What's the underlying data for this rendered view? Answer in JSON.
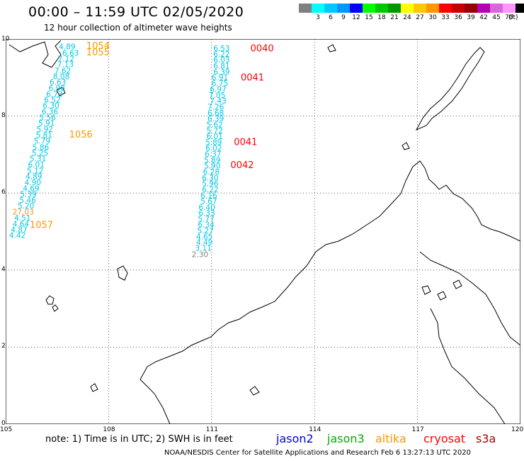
{
  "header": {
    "title": "00:00 – 11:59 UTC 02/05/2020",
    "subtitle": "12 hour collection of altimeter wave heights"
  },
  "legend": {
    "unit": "(ft)",
    "entries": [
      {
        "label": "",
        "color": "#808080"
      },
      {
        "label": "3",
        "color": "#00ffff"
      },
      {
        "label": "6",
        "color": "#00c8ff"
      },
      {
        "label": "9",
        "color": "#0096ff"
      },
      {
        "label": "12",
        "color": "#0000ff"
      },
      {
        "label": "15",
        "color": "#00ff00"
      },
      {
        "label": "18",
        "color": "#00c800"
      },
      {
        "label": "21",
        "color": "#009600"
      },
      {
        "label": "24",
        "color": "#ffff00"
      },
      {
        "label": "27",
        "color": "#ffc800"
      },
      {
        "label": "30",
        "color": "#ff9600"
      },
      {
        "label": "33",
        "color": "#ff0000"
      },
      {
        "label": "36",
        "color": "#c80000"
      },
      {
        "label": "39",
        "color": "#960000"
      },
      {
        "label": "42",
        "color": "#b400b4"
      },
      {
        "label": "45",
        "color": "#dc64dc"
      },
      {
        "label": "70",
        "color": "#ff96ff"
      },
      {
        "label": "",
        "color": "#000000"
      }
    ]
  },
  "axes": {
    "lon_labels": [
      "105",
      "108",
      "111",
      "114",
      "117",
      "120"
    ],
    "lat_labels": [
      "10",
      "8",
      "6",
      "4",
      "2",
      "0"
    ]
  },
  "tracks": [
    {
      "name": "west-track",
      "points": [
        {
          "lon": 106.55,
          "lat": 9.73,
          "v": "4.89"
        },
        {
          "lon": 106.65,
          "lat": 9.57,
          "v": "6.63"
        },
        {
          "lon": 106.52,
          "lat": 9.42,
          "v": "7.12"
        },
        {
          "lon": 106.5,
          "lat": 9.27,
          "v": "7.13"
        },
        {
          "lon": 106.42,
          "lat": 9.11,
          "v": "7.62"
        },
        {
          "lon": 106.38,
          "lat": 8.96,
          "v": "8.08"
        },
        {
          "lon": 106.28,
          "lat": 8.81,
          "v": "6.63"
        },
        {
          "lon": 106.25,
          "lat": 8.66,
          "v": "6.98"
        },
        {
          "lon": 106.18,
          "lat": 8.5,
          "v": "6.73"
        },
        {
          "lon": 106.12,
          "lat": 8.35,
          "v": "6.52"
        },
        {
          "lon": 106.08,
          "lat": 8.2,
          "v": "6.30"
        },
        {
          "lon": 106.05,
          "lat": 8.05,
          "v": "6.36"
        },
        {
          "lon": 105.98,
          "lat": 7.89,
          "v": "5.56"
        },
        {
          "lon": 105.95,
          "lat": 7.74,
          "v": "5.91"
        },
        {
          "lon": 105.9,
          "lat": 7.59,
          "v": "5.92"
        },
        {
          "lon": 105.88,
          "lat": 7.43,
          "v": "5.81"
        },
        {
          "lon": 105.82,
          "lat": 7.28,
          "v": "5.79"
        },
        {
          "lon": 105.78,
          "lat": 7.12,
          "v": "5.86"
        },
        {
          "lon": 105.76,
          "lat": 6.97,
          "v": "5.25"
        },
        {
          "lon": 105.7,
          "lat": 6.82,
          "v": "5.31"
        },
        {
          "lon": 105.65,
          "lat": 6.67,
          "v": "6.01"
        },
        {
          "lon": 105.62,
          "lat": 6.51,
          "v": "5.12"
        },
        {
          "lon": 105.58,
          "lat": 6.36,
          "v": "4.89"
        },
        {
          "lon": 105.55,
          "lat": 6.21,
          "v": "4.90"
        },
        {
          "lon": 105.5,
          "lat": 6.05,
          "v": "4.69"
        },
        {
          "lon": 105.42,
          "lat": 5.9,
          "v": "5.39"
        },
        {
          "lon": 105.4,
          "lat": 5.75,
          "v": "5.46"
        },
        {
          "lon": 105.35,
          "lat": 5.6,
          "v": "5.20"
        },
        {
          "lon": 105.2,
          "lat": 5.44,
          "v": "27.03",
          "color": "#ff9600"
        },
        {
          "lon": 105.25,
          "lat": 5.29,
          "v": "4.51"
        },
        {
          "lon": 105.2,
          "lat": 5.13,
          "v": "4.64"
        },
        {
          "lon": 105.15,
          "lat": 4.98,
          "v": "4.87"
        },
        {
          "lon": 105.1,
          "lat": 4.83,
          "v": "4.42"
        }
      ]
    },
    {
      "name": "central-track",
      "points": [
        {
          "lon": 111.05,
          "lat": 9.69,
          "v": "6.53"
        },
        {
          "lon": 111.05,
          "lat": 9.54,
          "v": "6.22"
        },
        {
          "lon": 111.05,
          "lat": 9.39,
          "v": "6.03"
        },
        {
          "lon": 111.05,
          "lat": 9.24,
          "v": "6.81"
        },
        {
          "lon": 111.05,
          "lat": 9.08,
          "v": "6.39"
        },
        {
          "lon": 111.0,
          "lat": 8.93,
          "v": "6.91"
        },
        {
          "lon": 111.0,
          "lat": 8.78,
          "v": "6.75"
        },
        {
          "lon": 110.95,
          "lat": 8.63,
          "v": "6.97"
        },
        {
          "lon": 110.92,
          "lat": 8.47,
          "v": "7.05"
        },
        {
          "lon": 110.95,
          "lat": 8.32,
          "v": "7.43"
        },
        {
          "lon": 110.88,
          "lat": 8.17,
          "v": "7.26"
        },
        {
          "lon": 110.88,
          "lat": 8.01,
          "v": "6.68"
        },
        {
          "lon": 110.88,
          "lat": 7.86,
          "v": "6.39"
        },
        {
          "lon": 110.85,
          "lat": 7.71,
          "v": "5.62"
        },
        {
          "lon": 110.85,
          "lat": 7.55,
          "v": "5.72"
        },
        {
          "lon": 110.85,
          "lat": 7.4,
          "v": "6.01"
        },
        {
          "lon": 110.82,
          "lat": 7.25,
          "v": "5.89"
        },
        {
          "lon": 110.82,
          "lat": 7.1,
          "v": "6.02"
        },
        {
          "lon": 110.8,
          "lat": 6.94,
          "v": "6.37"
        },
        {
          "lon": 110.78,
          "lat": 6.79,
          "v": "5.89"
        },
        {
          "lon": 110.78,
          "lat": 6.64,
          "v": "5.90"
        },
        {
          "lon": 110.75,
          "lat": 6.48,
          "v": "6.28"
        },
        {
          "lon": 110.72,
          "lat": 6.33,
          "v": "6.30"
        },
        {
          "lon": 110.72,
          "lat": 6.18,
          "v": "5.96"
        },
        {
          "lon": 110.72,
          "lat": 6.02,
          "v": "6.22"
        },
        {
          "lon": 110.68,
          "lat": 5.87,
          "v": "6.16"
        },
        {
          "lon": 110.68,
          "lat": 5.72,
          "v": "5.67"
        },
        {
          "lon": 110.62,
          "lat": 5.56,
          "v": "6.40"
        },
        {
          "lon": 110.62,
          "lat": 5.41,
          "v": "6.33"
        },
        {
          "lon": 110.6,
          "lat": 5.26,
          "v": "5.77"
        },
        {
          "lon": 110.6,
          "lat": 5.11,
          "v": "6.34"
        },
        {
          "lon": 110.58,
          "lat": 4.95,
          "v": "5.27"
        },
        {
          "lon": 110.55,
          "lat": 4.8,
          "v": "4.65"
        },
        {
          "lon": 110.55,
          "lat": 4.65,
          "v": "4.49"
        },
        {
          "lon": 110.52,
          "lat": 4.5,
          "v": "3.11"
        },
        {
          "lon": 110.42,
          "lat": 4.34,
          "v": "2.30",
          "color": "#808080"
        }
      ]
    }
  ],
  "time_labels": [
    {
      "lon": 107.35,
      "lat": 9.74,
      "text": "1054",
      "color": "#ff9600"
    },
    {
      "lon": 107.35,
      "lat": 9.58,
      "text": "1055",
      "color": "#ff9600"
    },
    {
      "lon": 106.85,
      "lat": 7.44,
      "text": "1056",
      "color": "#ff9600"
    },
    {
      "lon": 105.7,
      "lat": 5.09,
      "text": "1057",
      "color": "#ff9600"
    },
    {
      "lon": 112.13,
      "lat": 9.68,
      "text": "0040",
      "color": "#ff0000"
    },
    {
      "lon": 111.85,
      "lat": 8.92,
      "text": "0041",
      "color": "#ff0000"
    },
    {
      "lon": 111.65,
      "lat": 7.25,
      "text": "0041",
      "color": "#ff0000"
    },
    {
      "lon": 111.55,
      "lat": 6.65,
      "text": "0042",
      "color": "#ff0000"
    }
  ],
  "footer": {
    "note": "note:  1) Time is in UTC;  2) SWH is in feet",
    "credit": "NOAA/NESDIS Center for Satellite Applications and Research    Feb  6 13:27:13 UTC 2020",
    "satellites": [
      {
        "name": "jason2",
        "color": "#0000dd"
      },
      {
        "name": "jason3",
        "color": "#00aa00"
      },
      {
        "name": "altika",
        "color": "#ff9600"
      },
      {
        "name": "cryosat",
        "color": "#ff0000"
      },
      {
        "name": "s3a",
        "color": "#aa0000"
      }
    ]
  }
}
